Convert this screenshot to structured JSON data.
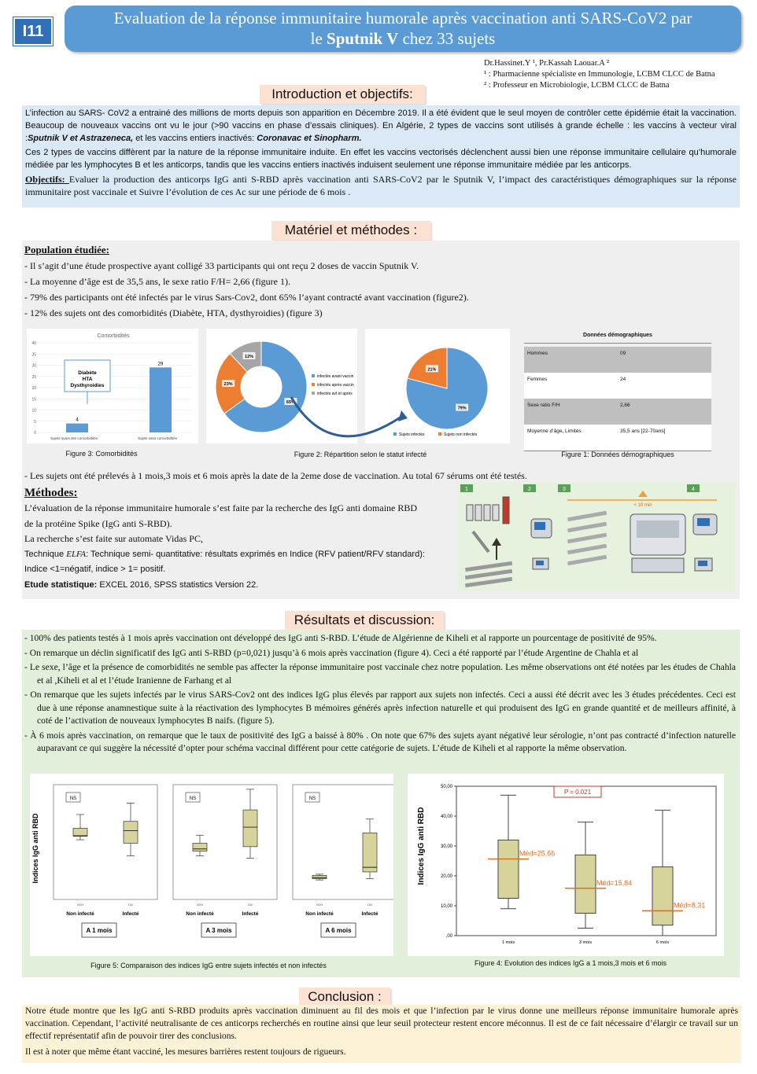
{
  "badge": "I11",
  "title": {
    "line1": "Evaluation de la réponse immunitaire humorale après vaccination anti SARS-CoV2 par",
    "line2_pre": "le ",
    "line2_bold": "Sputnik V",
    "line2_post": " chez 33 sujets"
  },
  "authors": {
    "names": "Dr.Hassinet.Y ¹, Pr.Kassah Laouar.A ²",
    "aff1": "¹ : Pharmacienne spécialiste en Immunologie, LCBM CLCC de Batna",
    "aff2": "² : Professeur en Microbiologie, LCBM CLCC de Batna"
  },
  "intro": {
    "heading": "Introduction et objectifs:",
    "p1_a": "L’infection au SARS- CoV2 a entrainé des millions de morts depuis son apparition en Décembre 2019. Il a été évident que le seul moyen de contrôler cette épidémie était la vaccination. Beaucoup de nouveaux vaccins ont vu le jour (>90 vaccins en phase d’essais cliniques). En Algérie, 2 types de vaccins sont utilisés à grande échelle :  les vaccins à vecteur viral :",
    "p1_b": "Sputnik V et Astrazeneca,",
    "p1_c": "  et les vaccins entiers inactivés: ",
    "p1_d": "Coronavac et Sinopharm.",
    "p2": "Ces 2 types de vaccins diffèrent par la nature de la réponse immunitaire induite. En effet les vaccins vectorisés déclenchent aussi bien une réponse immunitaire cellulaire qu’humorale médiée par les lymphocytes B et les anticorps, tandis que les vaccins entiers inactivés induisent seulement une réponse immunitaire médiée par les anticorps.",
    "obj_label": "Objectifs: ",
    "obj_text": "Evaluer la production des anticorps IgG anti S-RBD après vaccination anti SARS-CoV2 par le Sputnik V, l’impact des caractéristiques démographiques sur la réponse immunitaire post vaccinale et Suivre l’évolution de ces Ac sur une période de 6 mois ."
  },
  "methods": {
    "heading": "Matériel et méthodes :",
    "pop_title": "Population étudiée:",
    "pop_items": [
      "-  Il s’agit d’une étude prospective ayant colligé 33 participants qui ont reçu 2 doses de vaccin Sputnik V.",
      " - La moyenne d’âge est de 35,5 ans, le sexe ratio F/H= 2,66 (figure 1).",
      " - 79% des participants ont été infectés par le virus Sars-Cov2, dont 65% l’ayant contracté avant vaccination (figure2).",
      "- 12% des sujets ont des comorbidités (Diabète, HTA, dysthyroidies) (figure 3)"
    ],
    "sampling": "-   Les sujets ont été prélevés à 1 mois,3 mois et 6 mois après la date de la 2eme dose de vaccination. Au total 67 sérums ont été testés.",
    "meth_title": "Méthodes:",
    "meth_l1": "L’évaluation de la réponse immunitaire humorale s’est faite par la recherche des IgG anti domaine RBD",
    "meth_l2": "  de la protéine Spike  (IgG anti S-RBD).",
    "meth_l3": "La recherche s’est faite sur automate Vidas PC,",
    "meth_l4a": "Technique ",
    "meth_l4b": "ELFA",
    "meth_l4c": ": Technique semi- quantitative: résultats exprimés en Indice (RFV patient/RFV standard):",
    "meth_l5": "Indice <1=négatif, indice > 1= positif.",
    "stat_label": "Etude statistique:",
    "stat_text": "  EXCEL 2016, SPSS statistics Version 22."
  },
  "fig3": {
    "caption": "Figure 3: Comorbidités",
    "title": "Comorbidités",
    "legend": [
      "Diabète",
      "HTA",
      "Dysthyroidies"
    ],
    "yticks": [
      "0",
      "5",
      "10",
      "15",
      "20",
      "25",
      "30",
      "35",
      "40"
    ]
  },
  "fig2": {
    "caption": "Figure 2: Répartition selon le statut infecté",
    "donut_labels": [
      "65%",
      "23%",
      "12%"
    ],
    "donut_legend": [
      "infectés avant vaccin",
      "infectés après vaccin",
      "infectés avt et après"
    ],
    "pie_labels": [
      "79%",
      "21%"
    ],
    "pie_legend": [
      "Sujets infectés",
      "Sujets non infectés"
    ]
  },
  "fig1": {
    "caption": "Figure 1: Données démographiques",
    "title": "Données démographiques",
    "rows": [
      {
        "label": "Hommes",
        "value": "09"
      },
      {
        "label": "Femmes",
        "value": "24"
      },
      {
        "label": "Sexe ratio F/H",
        "value": "2,66"
      },
      {
        "label": "Moyenne d’âge, Limites",
        "value": "35,5 ans [22-70ans]"
      }
    ]
  },
  "protocol": {
    "steps": [
      "1",
      "2",
      "3",
      "4"
    ],
    "timer": "< 10 min"
  },
  "results": {
    "heading": "Résultats et discussion:",
    "items": [
      "-    100% des patients testés à 1 mois après vaccination ont développé des IgG anti S-RBD. L’étude de Algérienne de Kiheli et al rapporte un pourcentage de positivité de 95%.",
      "-    On remarque un déclin significatif des IgG anti S-RBD (p=0,021) jusqu’à 6 mois après vaccination (figure 4). Ceci a été rapporté par l’étude Argentine de Chahla et al",
      "-    Le sexe, l’âge et la présence de comorbidités ne semble pas affecter la réponse immunitaire post vaccinale chez notre population. Les même observations ont été notées par les études de Chahla et al ,Kiheli et al et l’étude Iranienne de Farhang et al",
      "-    On remarque que les sujets infectés par le virus SARS-Cov2 ont des indices IgG plus élevés par rapport aux sujets non infectés. Ceci a aussi été décrit avec les 3 études précédentes. Ceci est due à une réponse anamnestique  suite à la réactivation des lymphocytes B mémoires générés après infection naturelle et qui produisent des IgG en grande quantité et de meilleurs affinité, à coté de l’activation de nouveaux lymphocytes B naifs. (figure 5).",
      "-    À 6 mois après vaccination, on remarque que le taux de positivité des IgG a baissé à 80% . On note que 67%  des sujets ayant négativé leur sérologie, n’ont pas contracté d’infection naturelle auparavant ce qui suggère la nécessité d’opter pour schéma vaccinal différent pour cette catégorie de sujets. L’étude de Kiheli et al rapporte la même observation."
    ]
  },
  "fig5": {
    "caption": "Figure 5: Comparaison des indices IgG entre sujets infectés et non infectés",
    "ylabel": "Indices IgG anti RBD",
    "ns": "NS",
    "xlabels": [
      "Non infecté",
      "Infecté"
    ],
    "small_xlabels": [
      "NON",
      "OUI"
    ],
    "periods": [
      "A 1 mois",
      "A 3 mois",
      "A 6 mois"
    ]
  },
  "fig4": {
    "caption": "Figure 4: Evolution des indices IgG a 1 mois,3 mois et 6 mois",
    "ylabel": "Indices IgG anti RBD",
    "pval": "P = 0.021",
    "yticks": [
      "50,00",
      "40,00",
      "30,00",
      "20,00",
      "10,00",
      ",00"
    ],
    "xlabels": [
      "1 mois",
      "3 mois",
      "6 mois"
    ],
    "medians": [
      "Méd=25,66",
      "Méd=15,84",
      "Méd=8,31"
    ]
  },
  "conclusion": {
    "heading": "Conclusion :",
    "p1": " Notre étude montre que les IgG anti S-RBD produits après vaccination diminuent au fil des mois et que l’infection par le virus donne une meilleurs réponse immunitaire humorale après vaccination. Cependant, l’activité neutralisante de ces anticorps recherchés en routine ainsi que leur seuil protecteur restent encore méconnus.  Il est de ce fait nécessaire d’élargir ce travail sur un effectif représentatif afin de pouvoir tirer des conclusions.",
    "p2": "Il est à noter que même  étant vacciné, les mesures barrières restent toujours de rigueurs."
  },
  "chart_data": [
    {
      "type": "bar",
      "title": "Comorbidités",
      "categories": [
        "Sujets ayant des comorbidités",
        "Sujets sans comorbidités"
      ],
      "values": [
        4,
        29
      ],
      "ylim": [
        0,
        40
      ]
    },
    {
      "type": "pie",
      "categories": [
        "infectés avant vaccin",
        "infectés après vaccin",
        "infectés avt et après"
      ],
      "values": [
        65,
        23,
        12
      ]
    },
    {
      "type": "pie",
      "categories": [
        "Sujets infectés",
        "Sujets non infectés"
      ],
      "values": [
        79,
        21
      ]
    },
    {
      "type": "box",
      "ylabel": "Indices IgG anti RBD",
      "categories": [
        "1 mois",
        "3 mois",
        "6 mois"
      ],
      "medians": [
        25.66,
        15.84,
        8.31
      ],
      "ylim": [
        0,
        50
      ]
    }
  ]
}
